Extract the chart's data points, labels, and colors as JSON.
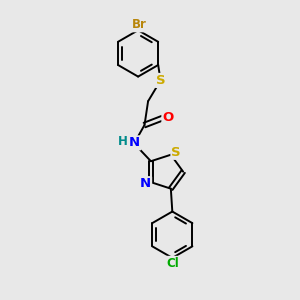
{
  "bg_color": "#e8e8e8",
  "bond_color": "#000000",
  "bond_width": 1.4,
  "atom_colors": {
    "Br": "#b8860b",
    "S": "#ccaa00",
    "O": "#ff0000",
    "N": "#0000ff",
    "H": "#008b8b",
    "Cl": "#00aa00",
    "C": "#000000"
  },
  "font_size": 8.5,
  "fig_size": [
    3.0,
    3.0
  ],
  "dpi": 100
}
